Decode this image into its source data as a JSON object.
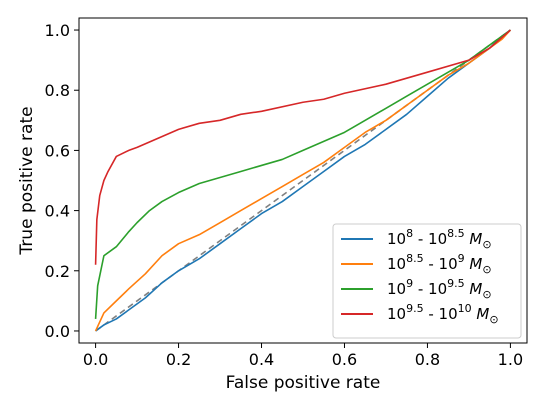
{
  "chart_data": {
    "type": "line",
    "title": "",
    "xlabel": "False positive rate",
    "ylabel": "True positive rate",
    "xlim": [
      -0.04,
      1.04
    ],
    "ylim": [
      -0.04,
      1.04
    ],
    "xticks": [
      0.0,
      0.2,
      0.4,
      0.6,
      0.8,
      1.0
    ],
    "yticks": [
      0.0,
      0.2,
      0.4,
      0.6,
      0.8,
      1.0
    ],
    "tick_labels": [
      "0.0",
      "0.2",
      "0.4",
      "0.6",
      "0.8",
      "1.0"
    ],
    "legend_position": "lower-right",
    "diagonal": {
      "style": "dashed",
      "color": "#808080",
      "x": [
        0,
        1
      ],
      "y": [
        0,
        1
      ]
    },
    "series": [
      {
        "name": "10^8 - 10^8.5 M_sun",
        "color": "#1f77b4",
        "x": [
          0.0,
          0.02,
          0.05,
          0.08,
          0.12,
          0.16,
          0.2,
          0.25,
          0.3,
          0.35,
          0.4,
          0.45,
          0.5,
          0.55,
          0.6,
          0.65,
          0.7,
          0.75,
          0.8,
          0.85,
          0.9,
          0.95,
          0.98,
          1.0
        ],
        "y": [
          0.0,
          0.02,
          0.04,
          0.07,
          0.11,
          0.16,
          0.2,
          0.24,
          0.29,
          0.34,
          0.39,
          0.43,
          0.48,
          0.53,
          0.58,
          0.62,
          0.67,
          0.72,
          0.78,
          0.84,
          0.89,
          0.94,
          0.98,
          1.0
        ]
      },
      {
        "name": "10^8.5 - 10^9 M_sun",
        "color": "#ff7f0e",
        "x": [
          0.0,
          0.02,
          0.05,
          0.08,
          0.12,
          0.16,
          0.2,
          0.25,
          0.3,
          0.35,
          0.4,
          0.45,
          0.5,
          0.55,
          0.6,
          0.65,
          0.7,
          0.75,
          0.8,
          0.85,
          0.9,
          0.95,
          0.98,
          1.0
        ],
        "y": [
          0.0,
          0.06,
          0.1,
          0.14,
          0.19,
          0.25,
          0.29,
          0.32,
          0.36,
          0.4,
          0.44,
          0.48,
          0.52,
          0.56,
          0.61,
          0.66,
          0.7,
          0.75,
          0.8,
          0.85,
          0.89,
          0.94,
          0.97,
          1.0
        ]
      },
      {
        "name": "10^9 - 10^9.5 M_sun",
        "color": "#2ca02c",
        "x": [
          0.0,
          0.005,
          0.02,
          0.05,
          0.08,
          0.1,
          0.13,
          0.16,
          0.2,
          0.25,
          0.3,
          0.35,
          0.4,
          0.45,
          0.5,
          0.55,
          0.6,
          0.65,
          0.7,
          0.75,
          0.8,
          0.85,
          0.9,
          0.95,
          1.0
        ],
        "y": [
          0.04,
          0.15,
          0.25,
          0.28,
          0.33,
          0.36,
          0.4,
          0.43,
          0.46,
          0.49,
          0.51,
          0.53,
          0.55,
          0.57,
          0.6,
          0.63,
          0.66,
          0.7,
          0.74,
          0.78,
          0.82,
          0.86,
          0.9,
          0.95,
          1.0
        ]
      },
      {
        "name": "10^9.5 - 10^10 M_sun",
        "color": "#d62728",
        "x": [
          0.0,
          0.003,
          0.01,
          0.02,
          0.03,
          0.05,
          0.08,
          0.1,
          0.15,
          0.2,
          0.25,
          0.3,
          0.35,
          0.4,
          0.5,
          0.55,
          0.6,
          0.7,
          0.8,
          0.9,
          0.95,
          1.0
        ],
        "y": [
          0.22,
          0.37,
          0.45,
          0.5,
          0.53,
          0.58,
          0.6,
          0.61,
          0.64,
          0.67,
          0.69,
          0.7,
          0.72,
          0.73,
          0.76,
          0.77,
          0.79,
          0.82,
          0.86,
          0.9,
          0.94,
          1.0
        ]
      }
    ]
  },
  "legend": {
    "items": [
      {
        "base1": "10",
        "exp1": "8",
        "base2": "10",
        "exp2": "8.5",
        "unit": "M",
        "unit_sub": "⊙",
        "color": "#1f77b4"
      },
      {
        "base1": "10",
        "exp1": "8.5",
        "base2": "10",
        "exp2": "9",
        "unit": "M",
        "unit_sub": "⊙",
        "color": "#ff7f0e"
      },
      {
        "base1": "10",
        "exp1": "9",
        "base2": "10",
        "exp2": "9.5",
        "unit": "M",
        "unit_sub": "⊙",
        "color": "#2ca02c"
      },
      {
        "base1": "10",
        "exp1": "9.5",
        "base2": "10",
        "exp2": "10",
        "unit": "M",
        "unit_sub": "⊙",
        "color": "#d62728"
      }
    ],
    "separator": " - "
  }
}
